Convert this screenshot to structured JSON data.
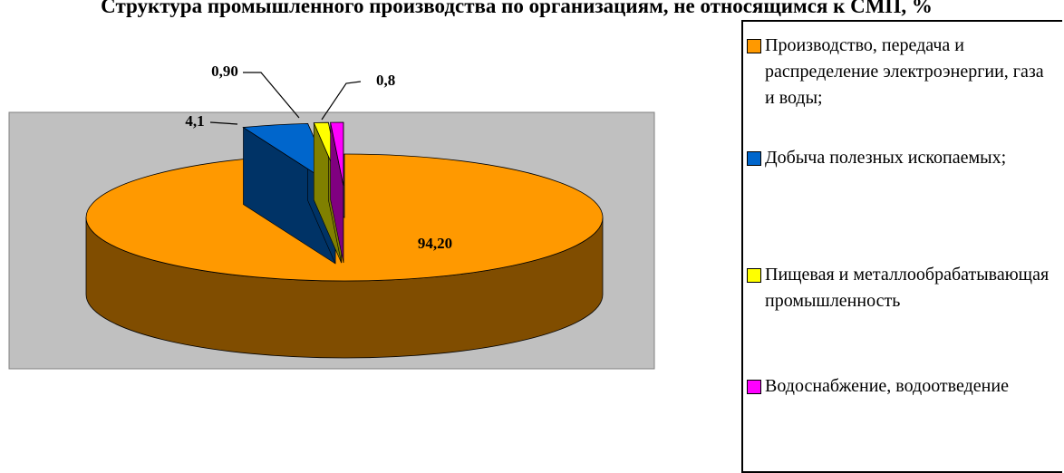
{
  "chart_data": {
    "type": "pie3d",
    "title": "Структура промышленного производства по организациям, не относящимся к СМП, %",
    "categories": [
      "Производство, передача и распределение электроэнергии, газа и воды;",
      "Добыча полезных ископаемых;",
      "Пищевая и металлообрабатывающая промышленность",
      "Водоснабжение, водоотведение"
    ],
    "values": [
      94.2,
      4.1,
      0.9,
      0.8
    ],
    "value_labels": [
      "94,20",
      "4,1",
      "0,90",
      "0,8"
    ],
    "colors": [
      "#ff9900",
      "#0066cc",
      "#ffff00",
      "#ff00ff"
    ],
    "legend": "right"
  }
}
